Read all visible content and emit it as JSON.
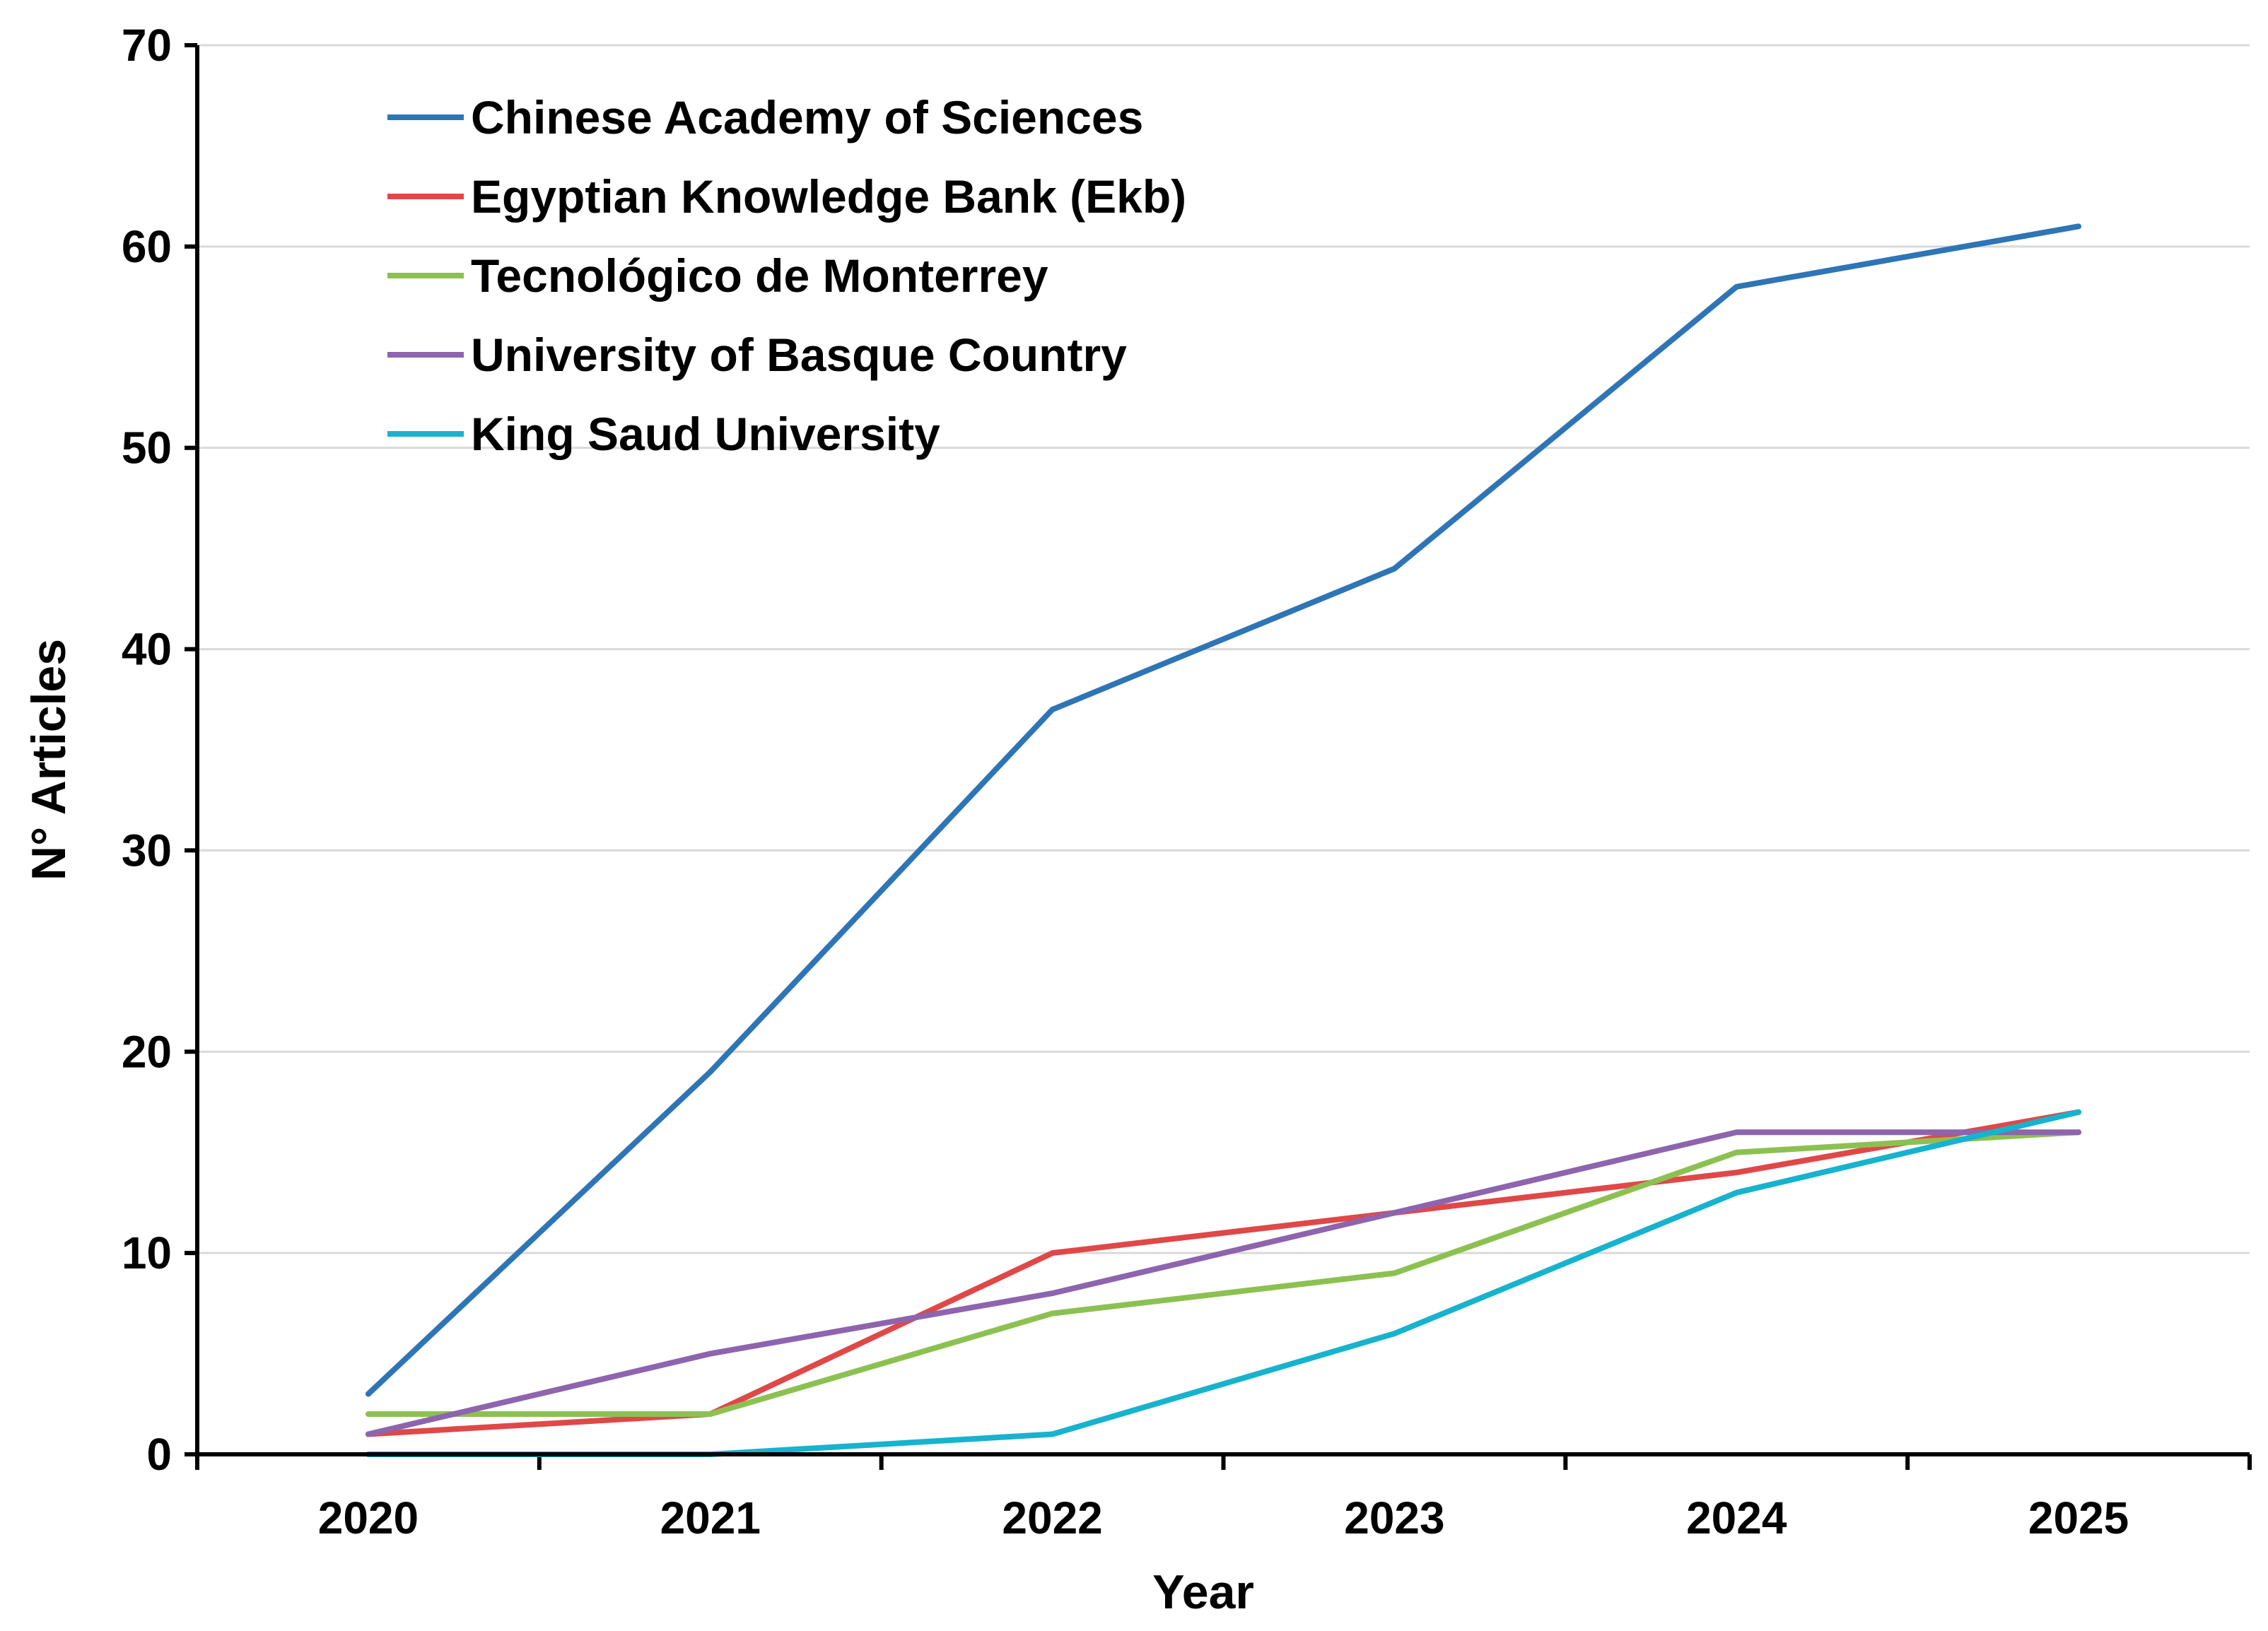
{
  "chart_data": {
    "type": "line",
    "title": "",
    "xlabel": "Year",
    "ylabel": "N° Articles",
    "categories": [
      "2020",
      "2021",
      "2022",
      "2023",
      "2024",
      "2025"
    ],
    "ylim": [
      0,
      70
    ],
    "yticks": [
      0,
      10,
      20,
      30,
      40,
      50,
      60,
      70
    ],
    "grid": "horizontal",
    "legend_position": "top-left",
    "series": [
      {
        "name": "Chinese Academy of Sciences",
        "color": "#2E75B6",
        "values": [
          3,
          19,
          37,
          44,
          58,
          61
        ]
      },
      {
        "name": "Egyptian Knowledge Bank (Ekb)",
        "color": "#E04848",
        "values": [
          1,
          2,
          10,
          12,
          14,
          17
        ]
      },
      {
        "name": "Tecnológico de Monterrey",
        "color": "#8CC152",
        "values": [
          2,
          2,
          7,
          9,
          15,
          16
        ]
      },
      {
        "name": "University of Basque Country",
        "color": "#8E64AE",
        "values": [
          1,
          5,
          8,
          12,
          16,
          16
        ]
      },
      {
        "name": "King Saud University",
        "color": "#17B3CE",
        "values": [
          0,
          0,
          1,
          6,
          13,
          17
        ]
      }
    ]
  }
}
